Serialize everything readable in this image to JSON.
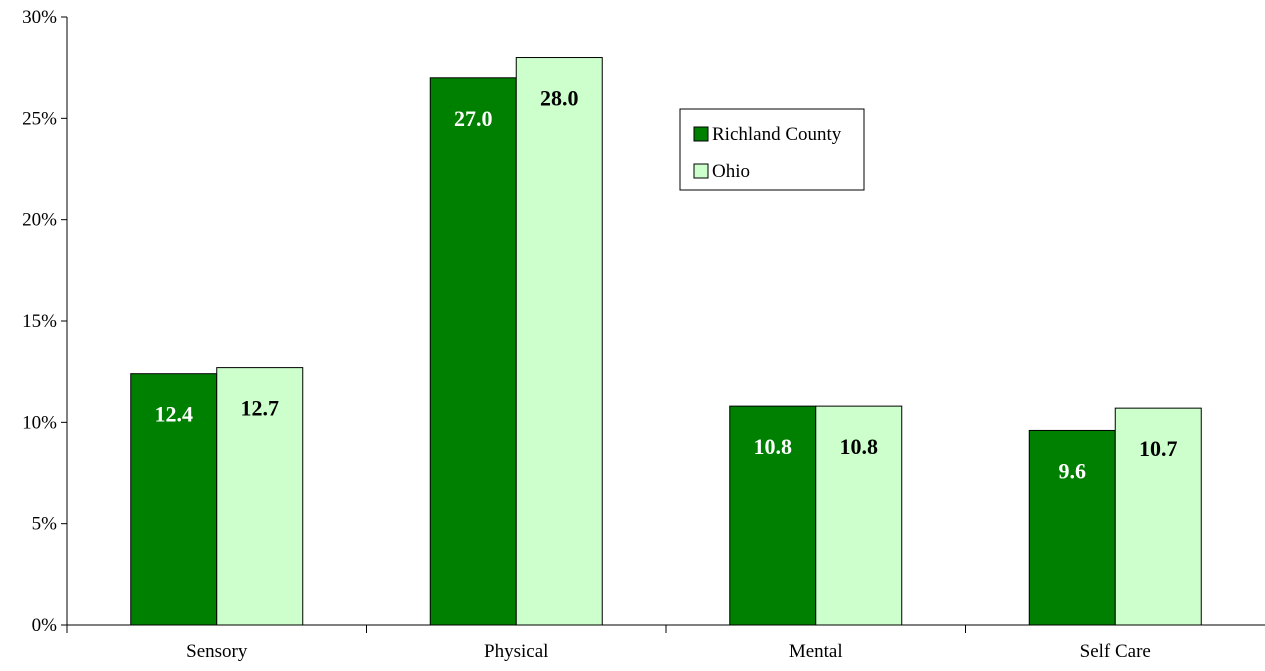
{
  "chart_data": {
    "type": "bar",
    "categories": [
      "Sensory",
      "Physical",
      "Mental",
      "Self Care"
    ],
    "series": [
      {
        "name": "Richland County",
        "color": "#008000",
        "label_color": "#ffffff",
        "values": [
          12.4,
          27.0,
          10.8,
          9.6
        ]
      },
      {
        "name": "Ohio",
        "color": "#ccffcc",
        "label_color": "#000000",
        "values": [
          12.7,
          28.0,
          10.8,
          10.7
        ]
      }
    ],
    "ylim": [
      0,
      30
    ],
    "yticks": [
      0,
      5,
      10,
      15,
      20,
      25,
      30
    ],
    "ytick_suffix": "%",
    "data_label_format": "0.0",
    "legend": {
      "position": "top-right-inside"
    },
    "grid": false
  }
}
